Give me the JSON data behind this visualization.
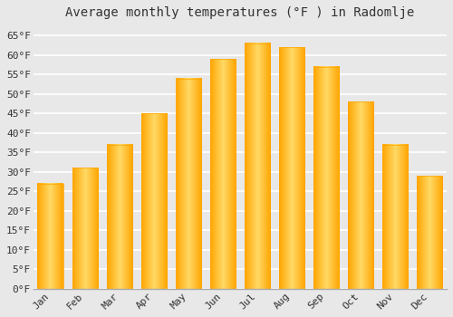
{
  "title": "Average monthly temperatures (°F ) in Radomlje",
  "months": [
    "Jan",
    "Feb",
    "Mar",
    "Apr",
    "May",
    "Jun",
    "Jul",
    "Aug",
    "Sep",
    "Oct",
    "Nov",
    "Dec"
  ],
  "values": [
    27,
    31,
    37,
    45,
    54,
    59,
    63,
    62,
    57,
    48,
    37,
    29
  ],
  "bar_color_center": "#FFD966",
  "bar_color_edge": "#FFA500",
  "ylim": [
    0,
    68
  ],
  "yticks": [
    0,
    5,
    10,
    15,
    20,
    25,
    30,
    35,
    40,
    45,
    50,
    55,
    60,
    65
  ],
  "ytick_labels": [
    "0°F",
    "5°F",
    "10°F",
    "15°F",
    "20°F",
    "25°F",
    "30°F",
    "35°F",
    "40°F",
    "45°F",
    "50°F",
    "55°F",
    "60°F",
    "65°F"
  ],
  "background_color": "#e8e8e8",
  "grid_color": "#ffffff",
  "title_fontsize": 10,
  "tick_fontsize": 8,
  "bar_width": 0.75
}
